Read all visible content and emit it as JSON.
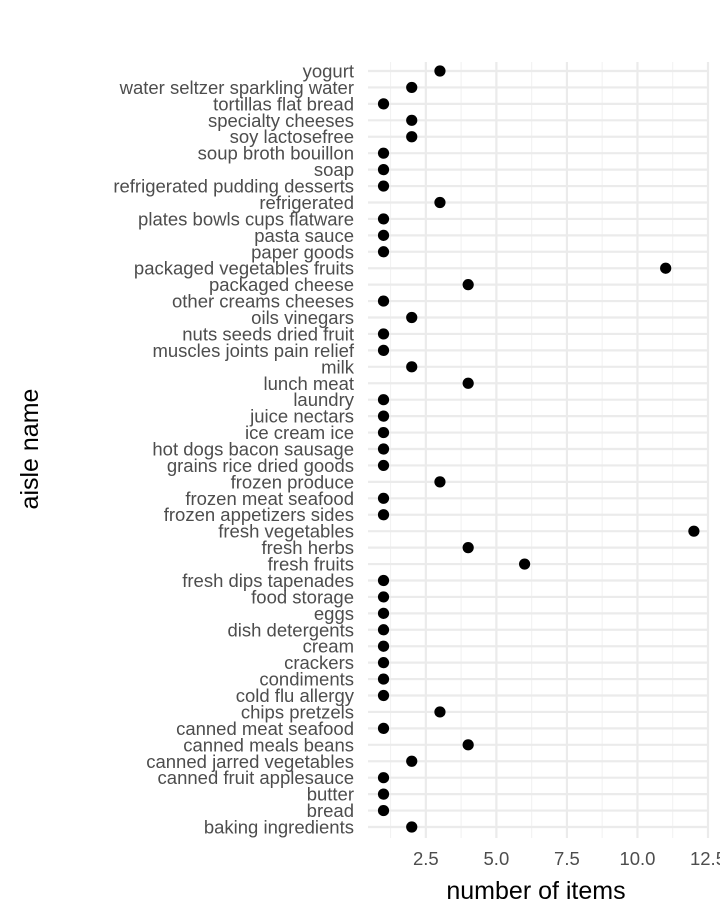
{
  "chart_data": {
    "type": "scatter",
    "xlabel": "number of items",
    "ylabel": "aisle name",
    "xlim": [
      0.45,
      12.5
    ],
    "x_ticks": [
      2.5,
      5.0,
      7.5,
      10.0,
      12.5
    ],
    "x_tick_labels": [
      "2.5",
      "5.0",
      "7.5",
      "10.0",
      "12.5"
    ],
    "grid": true,
    "legend": "none",
    "point_color": "#000000",
    "categories": [
      "baking ingredients",
      "bread",
      "butter",
      "canned fruit applesauce",
      "canned jarred vegetables",
      "canned meals beans",
      "canned meat seafood",
      "chips pretzels",
      "cold flu allergy",
      "condiments",
      "crackers",
      "cream",
      "dish detergents",
      "eggs",
      "food storage",
      "fresh dips tapenades",
      "fresh fruits",
      "fresh herbs",
      "fresh vegetables",
      "frozen appetizers sides",
      "frozen meat seafood",
      "frozen produce",
      "grains rice dried goods",
      "hot dogs bacon sausage",
      "ice cream ice",
      "juice nectars",
      "laundry",
      "lunch meat",
      "milk",
      "muscles joints pain relief",
      "nuts seeds dried fruit",
      "oils vinegars",
      "other creams cheeses",
      "packaged cheese",
      "packaged vegetables fruits",
      "paper goods",
      "pasta sauce",
      "plates bowls cups flatware",
      "refrigerated",
      "refrigerated pudding desserts",
      "soap",
      "soup broth bouillon",
      "soy lactosefree",
      "specialty cheeses",
      "tortillas flat bread",
      "water seltzer sparkling water",
      "yogurt"
    ],
    "values": [
      2,
      1,
      1,
      1,
      2,
      4,
      1,
      3,
      1,
      1,
      1,
      1,
      1,
      1,
      1,
      1,
      6,
      4,
      12,
      1,
      1,
      3,
      1,
      1,
      1,
      1,
      1,
      4,
      2,
      1,
      1,
      2,
      1,
      4,
      11,
      1,
      1,
      1,
      3,
      1,
      1,
      1,
      2,
      2,
      1,
      2,
      3
    ]
  }
}
